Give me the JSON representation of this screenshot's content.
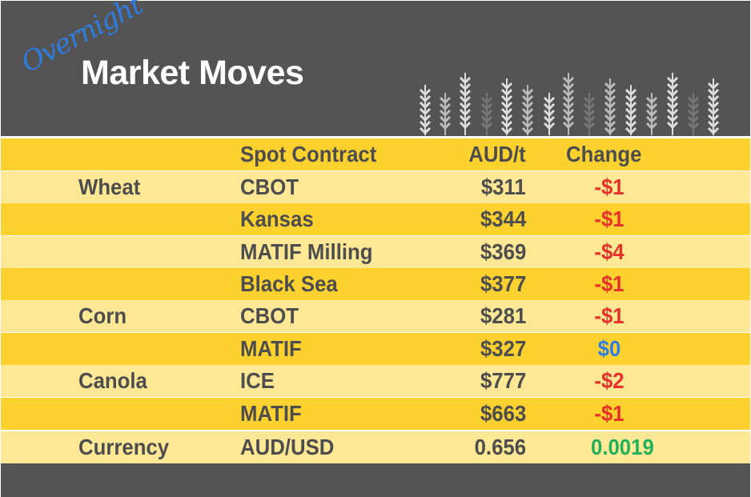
{
  "header": {
    "script_title": "Overnight",
    "title": "Market Moves",
    "decoration": "wheat-stalks-icon"
  },
  "table": {
    "columns": [
      "",
      "Spot Contract",
      "AUD/t",
      "Change"
    ],
    "rows": [
      {
        "commodity": "Wheat",
        "contract": "CBOT",
        "price": "$311",
        "change": "-$1",
        "change_color": "#e8312a"
      },
      {
        "commodity": "",
        "contract": "Kansas",
        "price": "$344",
        "change": "-$1",
        "change_color": "#e8312a"
      },
      {
        "commodity": "",
        "contract": "MATIF Milling",
        "price": "$369",
        "change": "-$4",
        "change_color": "#e8312a"
      },
      {
        "commodity": "",
        "contract": "Black Sea",
        "price": "$377",
        "change": "-$1",
        "change_color": "#e8312a"
      },
      {
        "commodity": "Corn",
        "contract": "CBOT",
        "price": "$281",
        "change": "-$1",
        "change_color": "#e8312a"
      },
      {
        "commodity": "",
        "contract": "MATIF",
        "price": "$327",
        "change": "$0",
        "change_color": "#2f7de1"
      },
      {
        "commodity": "Canola",
        "contract": "ICE",
        "price": "$777",
        "change": "-$2",
        "change_color": "#e8312a"
      },
      {
        "commodity": "",
        "contract": "MATIF",
        "price": "$663",
        "change": "-$1",
        "change_color": "#e8312a"
      },
      {
        "commodity": "Currency",
        "contract": "AUD/USD",
        "price": "0.656",
        "change": "0.0019",
        "change_color": "#22b05a"
      }
    ]
  },
  "colors": {
    "banner": "#545454",
    "row_dark": "#fdd22f",
    "row_light": "#ffe895",
    "text": "#4d4d4d"
  }
}
